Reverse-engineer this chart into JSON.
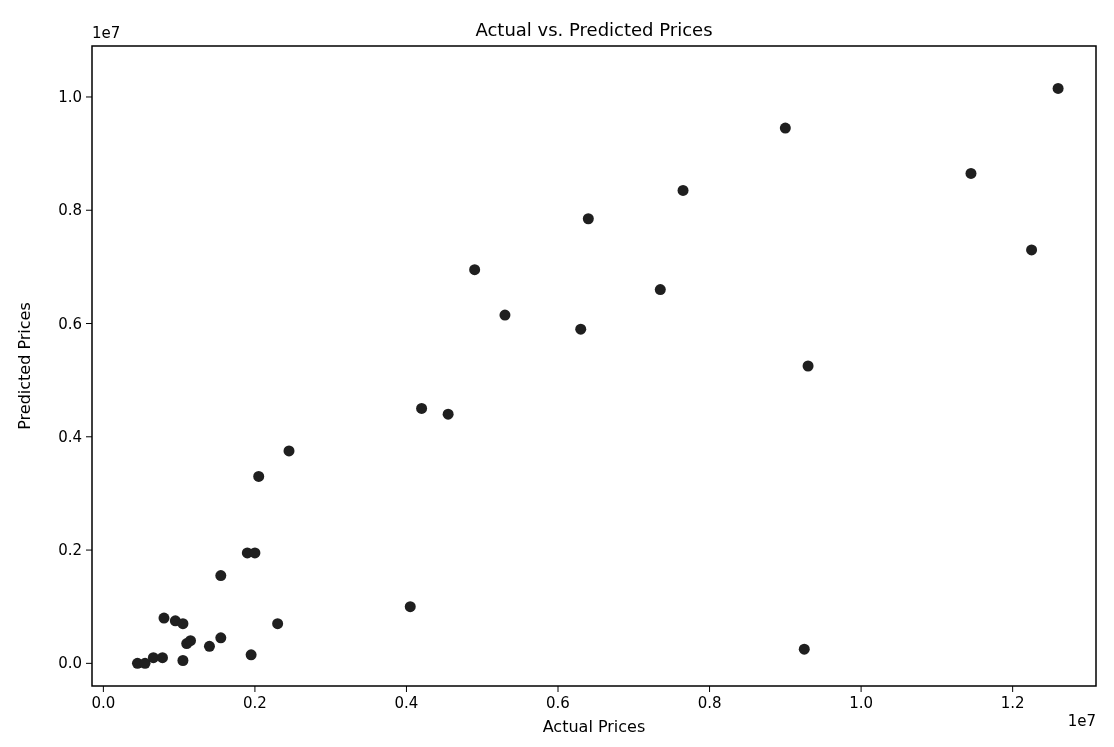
{
  "chart_data": {
    "type": "scatter",
    "title": "Actual vs. Predicted Prices",
    "xlabel": "Actual Prices",
    "ylabel": "Predicted Prices",
    "annotations": [
      "1e7",
      "1e7"
    ],
    "x": [
      0.045,
      0.055,
      0.066,
      0.078,
      0.08,
      0.095,
      0.105,
      0.105,
      0.11,
      0.115,
      0.14,
      0.155,
      0.155,
      0.195,
      0.19,
      0.2,
      0.205,
      0.23,
      0.245,
      0.405,
      0.42,
      0.455,
      0.49,
      0.53,
      0.63,
      0.64,
      0.735,
      0.765,
      0.9,
      0.925,
      0.93,
      1.145,
      1.225,
      1.26
    ],
    "values": [
      0.0,
      0.0,
      0.01,
      0.01,
      0.08,
      0.075,
      0.07,
      0.005,
      0.035,
      0.04,
      0.03,
      0.045,
      0.155,
      0.015,
      0.195,
      0.195,
      0.33,
      0.07,
      0.375,
      0.1,
      0.45,
      0.44,
      0.695,
      0.615,
      0.59,
      0.785,
      0.66,
      0.835,
      0.945,
      0.025,
      0.525,
      0.865,
      0.73,
      1.015
    ],
    "color": "#1f1f1f",
    "marker": "circle",
    "xlim": [
      -0.015,
      1.31
    ],
    "ylim": [
      -0.04,
      1.09
    ],
    "xticks": [
      {
        "value": 0,
        "label": "0.0"
      },
      0.2,
      0.4,
      0.6,
      0.8,
      {
        "value": 1,
        "label": "1.0"
      },
      1.2
    ],
    "yticks": [
      {
        "value": 0,
        "label": "0.0"
      },
      0.2,
      0.4,
      0.6,
      0.8,
      {
        "value": 1,
        "label": "1.0"
      }
    ]
  }
}
